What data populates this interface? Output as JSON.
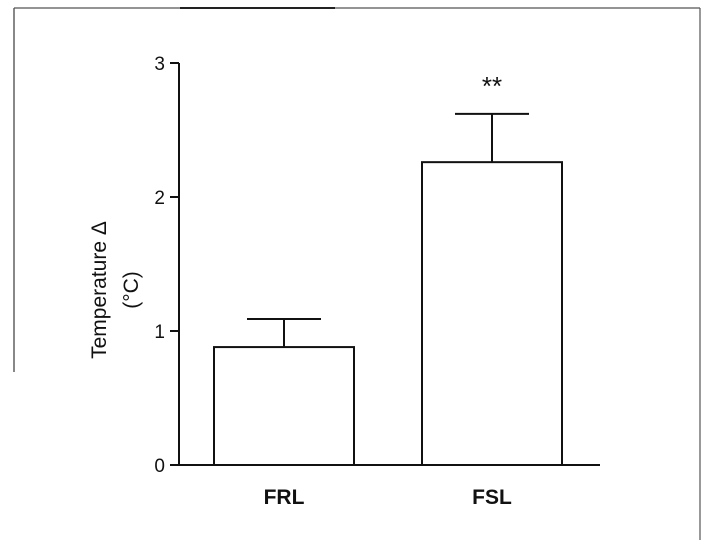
{
  "chart_data": {
    "type": "bar",
    "categories": [
      "FRL",
      "FSL"
    ],
    "values": [
      0.88,
      2.26
    ],
    "error_upper": [
      0.21,
      0.36
    ],
    "ylabel_lines": [
      "Temperature Δ",
      "(°C)"
    ],
    "xlabel": "",
    "ylim": [
      0,
      3
    ],
    "yticks": [
      "0",
      "1",
      "2",
      "3"
    ],
    "annotations": [
      {
        "category": "FSL",
        "text": "**"
      }
    ],
    "grid": false,
    "legend": "none",
    "colors": {
      "bar_fill": "#ffffff",
      "stroke": "#111111",
      "frame": "#555555"
    }
  }
}
